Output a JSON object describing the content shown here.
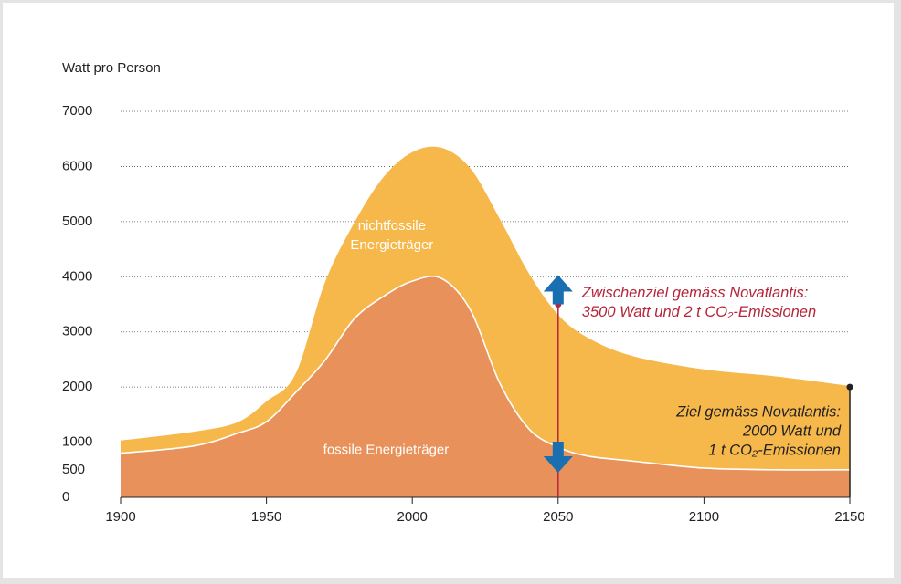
{
  "chart_data": {
    "type": "stacked_area",
    "ylabel": "Watt pro Person",
    "x": [
      1900,
      1925,
      1940,
      1950,
      1960,
      1970,
      1980,
      1990,
      2000,
      2010,
      2020,
      2030,
      2040,
      2050,
      2060,
      2075,
      2100,
      2125,
      2150
    ],
    "series": [
      {
        "name": "fossile Energieträger",
        "color": "#e8915a",
        "values": [
          800,
          930,
          1160,
          1370,
          1900,
          2480,
          3230,
          3640,
          3920,
          3970,
          3390,
          2070,
          1240,
          910,
          750,
          660,
          530,
          500,
          500
        ]
      },
      {
        "name": "nichtfossile Energieträger",
        "color": "#f7b84b",
        "values": [
          230,
          260,
          200,
          370,
          340,
          1410,
          1740,
          2160,
          2340,
          2370,
          2570,
          2980,
          2820,
          2400,
          2150,
          1910,
          1790,
          1690,
          1520
        ]
      }
    ],
    "xlim": [
      1900,
      2150
    ],
    "xticks": [
      1900,
      1950,
      2000,
      2050,
      2100,
      2150
    ],
    "ylim": [
      0,
      7000
    ],
    "yticks": [
      0,
      500,
      1000,
      2000,
      3000,
      4000,
      5000,
      6000,
      7000
    ],
    "grid": true,
    "annotations": [
      {
        "x": 2050,
        "y": 3500,
        "color": "#b5253a",
        "lines": [
          "Zwischenziel gemäss Novatlantis:",
          "3500 Watt und 2 t CO₂-Emissionen"
        ]
      },
      {
        "x": 2150,
        "y": 2000,
        "color": "#222222",
        "lines": [
          "Ziel gemäss Novatlantis:",
          "2000 Watt und",
          "1 t CO₂-Emissionen"
        ]
      }
    ]
  }
}
